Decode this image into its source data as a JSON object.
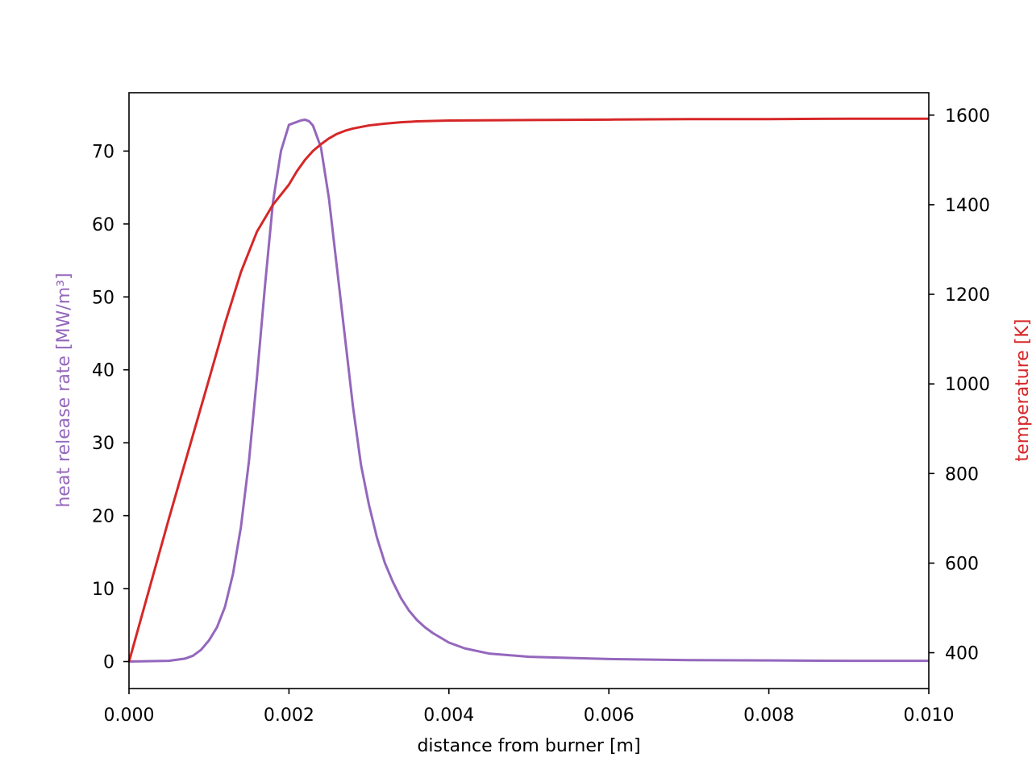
{
  "chart_data": {
    "type": "line",
    "title": "",
    "xlabel": "distance from burner [m]",
    "xlim": [
      0.0,
      0.01
    ],
    "x_ticks": [
      0.0,
      0.002,
      0.004,
      0.006,
      0.008,
      0.01
    ],
    "x_tick_labels": [
      "0.000",
      "0.002",
      "0.004",
      "0.006",
      "0.008",
      "0.010"
    ],
    "grid": false,
    "legend": null,
    "axes": {
      "left": {
        "label": "heat release rate [MW/m³]",
        "color": "#9467bd",
        "ylim": [
          -3.7,
          78.0
        ],
        "ticks": [
          0,
          10,
          20,
          30,
          40,
          50,
          60,
          70
        ],
        "tick_labels": [
          "0",
          "10",
          "20",
          "30",
          "40",
          "50",
          "60",
          "70"
        ]
      },
      "right": {
        "label": "temperature [K]",
        "color": "#d62728",
        "ylim": [
          320,
          1650
        ],
        "ticks": [
          400,
          600,
          800,
          1000,
          1200,
          1400,
          1600
        ],
        "tick_labels": [
          "400",
          "600",
          "800",
          "1000",
          "1200",
          "1400",
          "1600"
        ]
      }
    },
    "series": [
      {
        "axis": "left",
        "color": "#9467bd",
        "x": [
          0.0,
          0.0005,
          0.0007,
          0.0008,
          0.0009,
          0.001,
          0.0011,
          0.0012,
          0.0013,
          0.0014,
          0.0015,
          0.0016,
          0.0017,
          0.0018,
          0.0019,
          0.002,
          0.0021,
          0.00215,
          0.0022,
          0.00225,
          0.0023,
          0.0024,
          0.0025,
          0.0026,
          0.0027,
          0.0028,
          0.0029,
          0.003,
          0.0031,
          0.0032,
          0.0033,
          0.0034,
          0.0035,
          0.0036,
          0.0037,
          0.0038,
          0.004,
          0.0042,
          0.0045,
          0.005,
          0.006,
          0.007,
          0.008,
          0.009,
          0.01
        ],
        "values": [
          0.0,
          0.1,
          0.4,
          0.8,
          1.6,
          2.9,
          4.7,
          7.5,
          12.0,
          18.5,
          27.5,
          39.0,
          51.5,
          63.0,
          70.0,
          73.6,
          74.0,
          74.2,
          74.3,
          74.1,
          73.5,
          70.5,
          63.5,
          54.0,
          44.5,
          35.0,
          27.0,
          21.5,
          17.0,
          13.5,
          10.9,
          8.7,
          7.0,
          5.7,
          4.7,
          3.9,
          2.6,
          1.8,
          1.1,
          0.65,
          0.35,
          0.2,
          0.15,
          0.1,
          0.1
        ]
      },
      {
        "axis": "right",
        "color": "#d62728",
        "x": [
          0.0,
          0.0005,
          0.001,
          0.0012,
          0.0014,
          0.0016,
          0.0018,
          0.002,
          0.0021,
          0.0022,
          0.0023,
          0.0024,
          0.0025,
          0.0026,
          0.0027,
          0.0028,
          0.003,
          0.0032,
          0.0034,
          0.0036,
          0.0038,
          0.004,
          0.005,
          0.006,
          0.007,
          0.008,
          0.009,
          0.01
        ],
        "values": [
          380,
          700,
          1010,
          1135,
          1250,
          1340,
          1400,
          1445,
          1475,
          1500,
          1520,
          1535,
          1548,
          1558,
          1565,
          1570,
          1577,
          1581,
          1584,
          1586,
          1587,
          1588,
          1589,
          1590,
          1591,
          1591,
          1592,
          1592
        ]
      }
    ]
  }
}
